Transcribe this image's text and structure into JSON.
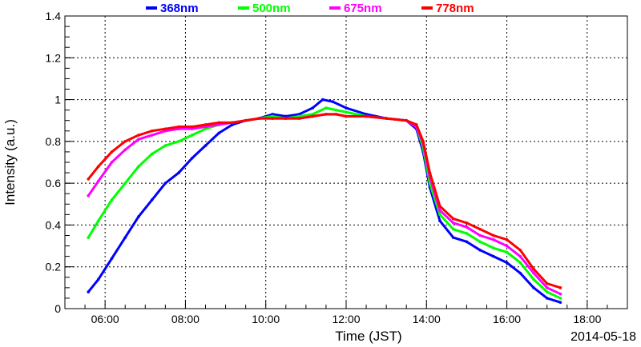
{
  "chart_data": {
    "type": "scatter",
    "xlabel": "Time (JST)",
    "ylabel": "Intensity (a.u.)",
    "date": "2014-05-18",
    "xlim": [
      "05:00",
      "19:00"
    ],
    "ylim": [
      0,
      1.4
    ],
    "x_ticks": [
      "06:00",
      "08:00",
      "10:00",
      "12:00",
      "14:00",
      "16:00",
      "18:00"
    ],
    "y_ticks": [
      "0",
      "0.2",
      "0.4",
      "0.6",
      "0.8",
      "1",
      "1.2",
      "1.4"
    ],
    "grid": true,
    "legend_position": "top",
    "series": [
      {
        "name": "368nm",
        "color": "#0000ff",
        "points": [
          [
            "05:35",
            0.08
          ],
          [
            "05:50",
            0.14
          ],
          [
            "06:10",
            0.24
          ],
          [
            "06:30",
            0.34
          ],
          [
            "06:50",
            0.44
          ],
          [
            "07:10",
            0.52
          ],
          [
            "07:30",
            0.6
          ],
          [
            "07:50",
            0.65
          ],
          [
            "08:10",
            0.72
          ],
          [
            "08:30",
            0.78
          ],
          [
            "08:50",
            0.84
          ],
          [
            "09:10",
            0.88
          ],
          [
            "09:30",
            0.9
          ],
          [
            "09:50",
            0.91
          ],
          [
            "10:10",
            0.93
          ],
          [
            "10:30",
            0.92
          ],
          [
            "10:50",
            0.93
          ],
          [
            "11:10",
            0.96
          ],
          [
            "11:25",
            1.0
          ],
          [
            "11:40",
            0.99
          ],
          [
            "12:00",
            0.96
          ],
          [
            "12:30",
            0.93
          ],
          [
            "13:00",
            0.91
          ],
          [
            "13:30",
            0.9
          ],
          [
            "13:45",
            0.86
          ],
          [
            "13:55",
            0.75
          ],
          [
            "14:05",
            0.58
          ],
          [
            "14:20",
            0.42
          ],
          [
            "14:40",
            0.34
          ],
          [
            "15:00",
            0.32
          ],
          [
            "15:20",
            0.28
          ],
          [
            "15:40",
            0.25
          ],
          [
            "16:00",
            0.22
          ],
          [
            "16:20",
            0.17
          ],
          [
            "16:40",
            0.1
          ],
          [
            "17:00",
            0.05
          ],
          [
            "17:20",
            0.03
          ]
        ]
      },
      {
        "name": "500nm",
        "color": "#00ff00",
        "points": [
          [
            "05:35",
            0.34
          ],
          [
            "05:50",
            0.42
          ],
          [
            "06:10",
            0.52
          ],
          [
            "06:30",
            0.6
          ],
          [
            "06:50",
            0.68
          ],
          [
            "07:10",
            0.74
          ],
          [
            "07:30",
            0.78
          ],
          [
            "07:50",
            0.8
          ],
          [
            "08:10",
            0.83
          ],
          [
            "08:30",
            0.86
          ],
          [
            "08:50",
            0.88
          ],
          [
            "09:10",
            0.89
          ],
          [
            "09:30",
            0.9
          ],
          [
            "09:50",
            0.91
          ],
          [
            "10:10",
            0.92
          ],
          [
            "10:30",
            0.91
          ],
          [
            "10:50",
            0.92
          ],
          [
            "11:10",
            0.93
          ],
          [
            "11:30",
            0.96
          ],
          [
            "11:45",
            0.95
          ],
          [
            "12:00",
            0.94
          ],
          [
            "12:30",
            0.92
          ],
          [
            "13:00",
            0.91
          ],
          [
            "13:30",
            0.9
          ],
          [
            "13:45",
            0.87
          ],
          [
            "13:55",
            0.77
          ],
          [
            "14:05",
            0.6
          ],
          [
            "14:20",
            0.45
          ],
          [
            "14:40",
            0.38
          ],
          [
            "15:00",
            0.36
          ],
          [
            "15:20",
            0.32
          ],
          [
            "15:40",
            0.29
          ],
          [
            "16:00",
            0.27
          ],
          [
            "16:20",
            0.22
          ],
          [
            "16:40",
            0.14
          ],
          [
            "17:00",
            0.08
          ],
          [
            "17:20",
            0.05
          ]
        ]
      },
      {
        "name": "675nm",
        "color": "#ff00ff",
        "points": [
          [
            "05:35",
            0.54
          ],
          [
            "05:50",
            0.61
          ],
          [
            "06:10",
            0.7
          ],
          [
            "06:30",
            0.76
          ],
          [
            "06:50",
            0.81
          ],
          [
            "07:10",
            0.83
          ],
          [
            "07:30",
            0.85
          ],
          [
            "07:50",
            0.86
          ],
          [
            "08:10",
            0.86
          ],
          [
            "08:30",
            0.87
          ],
          [
            "08:50",
            0.88
          ],
          [
            "09:10",
            0.89
          ],
          [
            "09:30",
            0.9
          ],
          [
            "09:50",
            0.91
          ],
          [
            "10:10",
            0.91
          ],
          [
            "10:30",
            0.91
          ],
          [
            "10:50",
            0.91
          ],
          [
            "11:10",
            0.92
          ],
          [
            "11:30",
            0.93
          ],
          [
            "11:45",
            0.93
          ],
          [
            "12:00",
            0.92
          ],
          [
            "12:30",
            0.92
          ],
          [
            "13:00",
            0.91
          ],
          [
            "13:30",
            0.9
          ],
          [
            "13:45",
            0.87
          ],
          [
            "13:55",
            0.79
          ],
          [
            "14:05",
            0.63
          ],
          [
            "14:20",
            0.47
          ],
          [
            "14:40",
            0.41
          ],
          [
            "15:00",
            0.39
          ],
          [
            "15:20",
            0.35
          ],
          [
            "15:40",
            0.33
          ],
          [
            "16:00",
            0.3
          ],
          [
            "16:20",
            0.25
          ],
          [
            "16:40",
            0.17
          ],
          [
            "17:00",
            0.1
          ],
          [
            "17:20",
            0.07
          ]
        ]
      },
      {
        "name": "778nm",
        "color": "#ff0000",
        "points": [
          [
            "05:35",
            0.62
          ],
          [
            "05:50",
            0.68
          ],
          [
            "06:10",
            0.75
          ],
          [
            "06:30",
            0.8
          ],
          [
            "06:50",
            0.83
          ],
          [
            "07:10",
            0.85
          ],
          [
            "07:30",
            0.86
          ],
          [
            "07:50",
            0.87
          ],
          [
            "08:10",
            0.87
          ],
          [
            "08:30",
            0.88
          ],
          [
            "08:50",
            0.89
          ],
          [
            "09:10",
            0.89
          ],
          [
            "09:30",
            0.9
          ],
          [
            "09:50",
            0.91
          ],
          [
            "10:10",
            0.91
          ],
          [
            "10:30",
            0.91
          ],
          [
            "10:50",
            0.91
          ],
          [
            "11:10",
            0.92
          ],
          [
            "11:30",
            0.93
          ],
          [
            "11:45",
            0.93
          ],
          [
            "12:00",
            0.92
          ],
          [
            "12:30",
            0.92
          ],
          [
            "13:00",
            0.91
          ],
          [
            "13:30",
            0.9
          ],
          [
            "13:45",
            0.88
          ],
          [
            "13:55",
            0.8
          ],
          [
            "14:05",
            0.65
          ],
          [
            "14:20",
            0.49
          ],
          [
            "14:40",
            0.43
          ],
          [
            "15:00",
            0.41
          ],
          [
            "15:20",
            0.38
          ],
          [
            "15:40",
            0.35
          ],
          [
            "16:00",
            0.33
          ],
          [
            "16:20",
            0.28
          ],
          [
            "16:40",
            0.19
          ],
          [
            "17:00",
            0.12
          ],
          [
            "17:20",
            0.1
          ]
        ]
      }
    ]
  }
}
